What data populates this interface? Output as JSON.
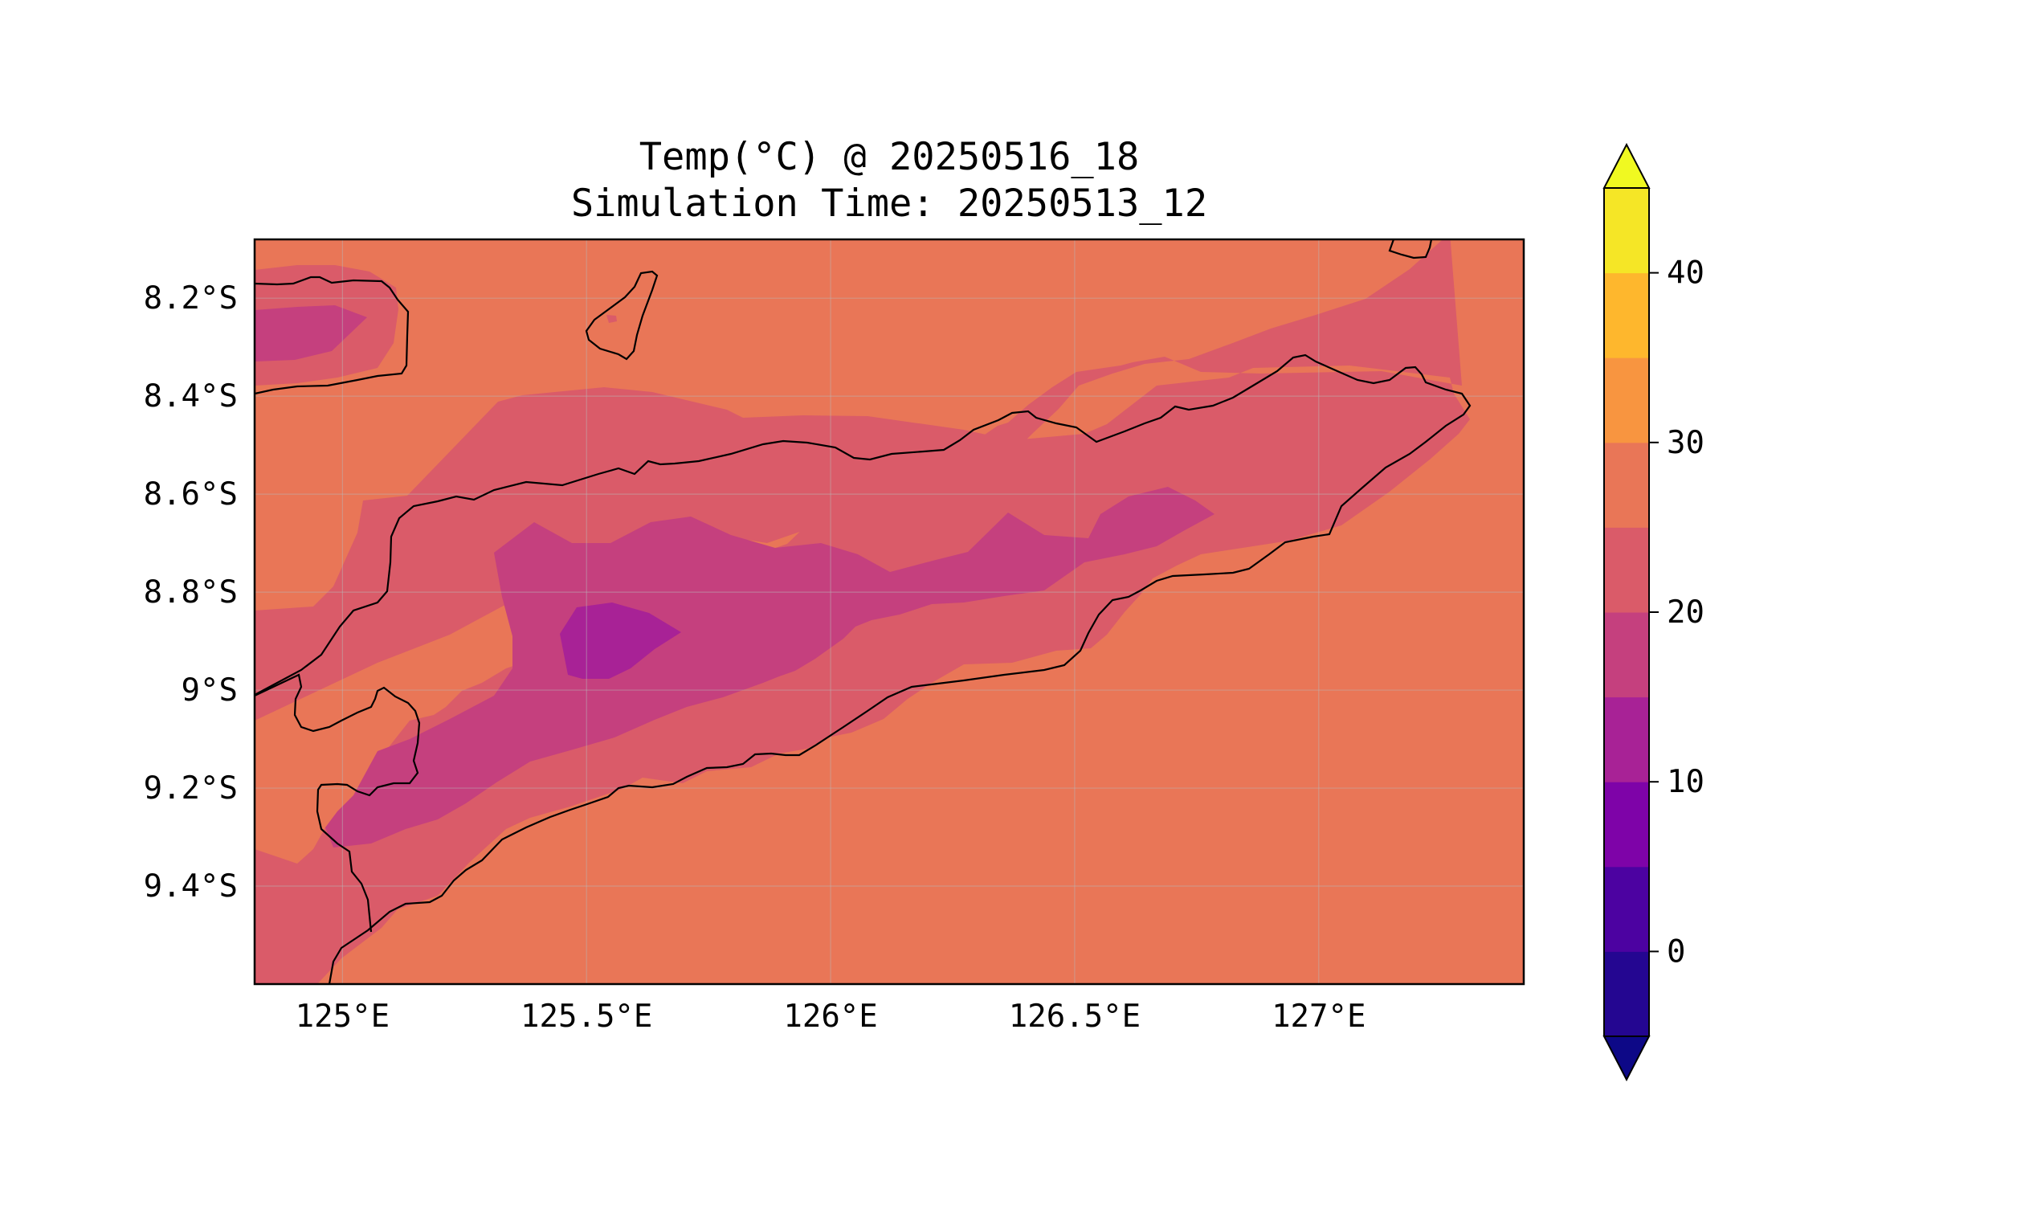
{
  "figure": {
    "title_line1": "Temp(°C) @ 20250516_18",
    "title_line2": "Simulation Time: 20250513_12"
  },
  "map": {
    "lon_range": [
      124.82,
      127.42
    ],
    "lat_range": [
      -9.6,
      -8.08
    ],
    "lon_ticks": [
      125,
      125.5,
      126,
      126.5,
      127
    ],
    "lon_tick_labels": [
      "125°E",
      "125.5°E",
      "126°E",
      "126.5°E",
      "127°E"
    ],
    "lat_ticks": [
      -8.2,
      -8.4,
      -8.6,
      -8.8,
      -9.0,
      -9.2,
      -9.4
    ],
    "lat_tick_labels": [
      "8.2°S",
      "8.4°S",
      "8.6°S",
      "8.8°S",
      "9°S",
      "9.2°S",
      "9.4°S"
    ],
    "gridlines": true,
    "background_color": "#e97657"
  },
  "colorbar": {
    "ticks": [
      0,
      10,
      20,
      30,
      40
    ],
    "tick_labels": [
      "0",
      "10",
      "20",
      "30",
      "40"
    ],
    "levels": [
      -5,
      0,
      5,
      10,
      15,
      20,
      25,
      30,
      35,
      40,
      45
    ],
    "colors": [
      "#240691",
      "#4c02a1",
      "#7e03a8",
      "#a82296",
      "#c5407e",
      "#da5b69",
      "#e97657",
      "#f89540",
      "#feb72d",
      "#f5e626"
    ],
    "under_color": "#0d0887",
    "over_color": "#f0f921",
    "extend": "both"
  },
  "chart_data": {
    "type": "filled-contour",
    "variable": "Temp(°C)",
    "valid_time": "20250516_18",
    "simulation_time": "20250513_12",
    "region": {
      "lon": [
        124.82,
        127.42
      ],
      "lat": [
        -9.6,
        -8.08
      ]
    },
    "filled_levels": [
      10,
      15,
      20,
      25,
      30
    ],
    "colormap": "plasma"
  }
}
